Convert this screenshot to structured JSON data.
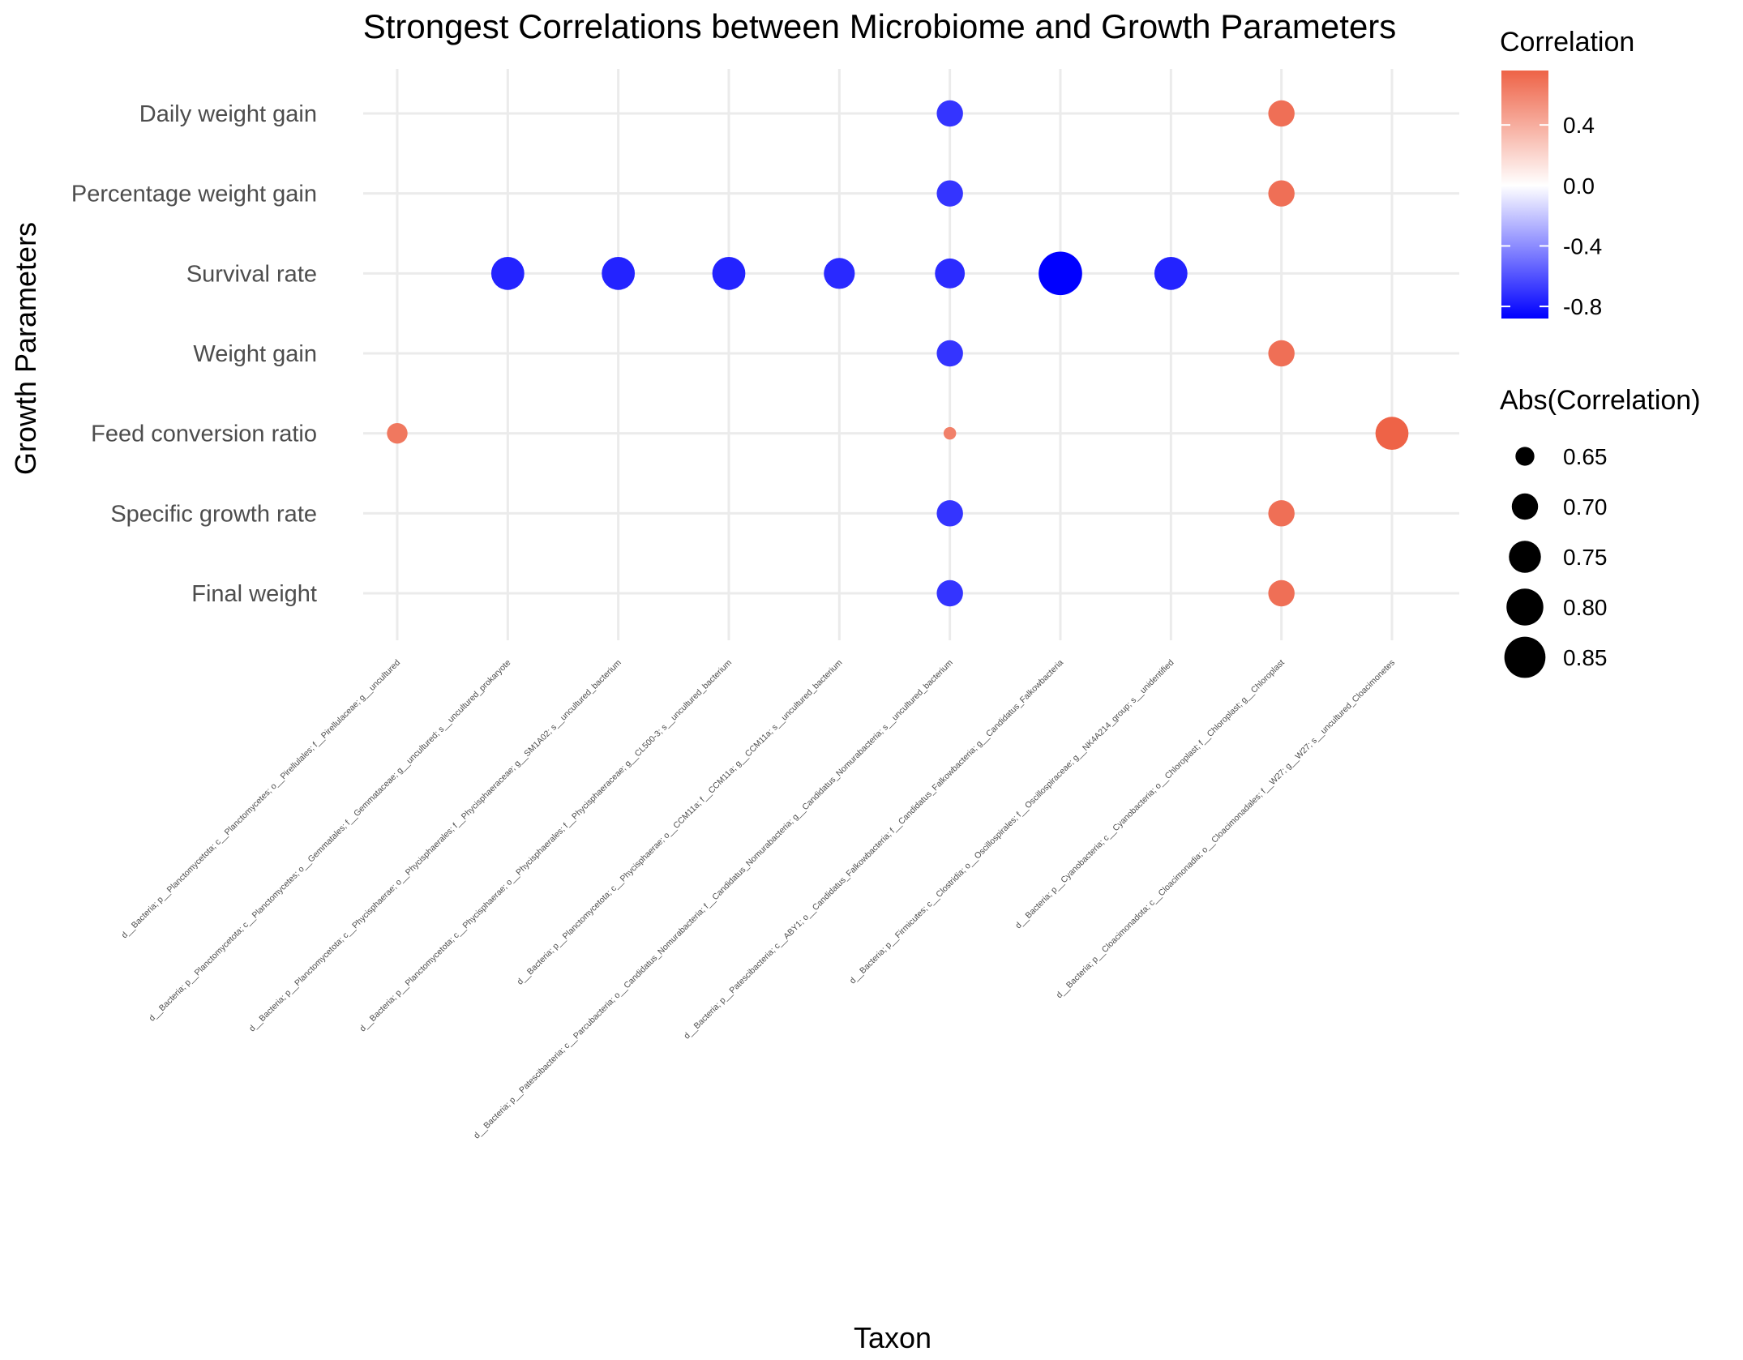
{
  "chart_data": {
    "type": "scatter",
    "title": "Strongest Correlations between Microbiome and Growth Parameters",
    "xlabel": "Taxon",
    "ylabel": "Growth Parameters",
    "grid": true,
    "legend_placement": "right",
    "x_categories": [
      "d__Bacteria; p__Planctomycetota; c__Planctomycetes; o__Pirellulales; f__Pirellulaceae; g__uncultured",
      "d__Bacteria; p__Planctomycetota; c__Planctomycetes; o__Gemmatales; f__Gemmataceae; g__uncultured; s__uncultured_prokaryote",
      "d__Bacteria; p__Planctomycetota; c__Phycisphaerae; o__Phycisphaerales; f__Phycisphaeraceae; g__SM1A02; s__uncultured_bacterium",
      "d__Bacteria; p__Planctomycetota; c__Phycisphaerae; o__Phycisphaerales; f__Phycisphaeraceae; g__CL500-3; s__uncultured_bacterium",
      "d__Bacteria; p__Planctomycetota; c__Phycisphaerae; o__CCM11a; f__CCM11a; g__CCM11a; s__uncultured_bacterium",
      "d__Bacteria; p__Patescibacteria; c__Parcubacteria; o__Candidatus_Nomurabacteria; f__Candidatus_Nomurabacteria; g__Candidatus_Nomurabacteria; s__uncultured_bacterium",
      "d__Bacteria; p__Patescibacteria; c__ABY1; o__Candidatus_Falkowbacteria; f__Candidatus_Falkowbacteria; g__Candidatus_Falkowbacteria",
      "d__Bacteria; p__Firmicutes; c__Clostridia; o__Oscillospirales; f__Oscillospiraceae; g__NK4A214_group; s__unidentified",
      "d__Bacteria; p__Cyanobacteria; c__Cyanobacteria; o__Chloroplast; f__Chloroplast; g__Chloroplast",
      "d__Bacteria; p__Cloacimonadota; c__Cloacimonadia; o__Cloacimonadales; f__W27; g__W27; s__uncultured_Cloacimonetes"
    ],
    "y_categories": [
      "Final weight",
      "Specific growth rate",
      "Feed conversion ratio",
      "Weight gain",
      "Survival rate",
      "Percentage weight gain",
      "Daily weight gain"
    ],
    "points": [
      {
        "x": 0,
        "y": "Feed conversion ratio",
        "correlation": 0.66
      },
      {
        "x": 1,
        "y": "Survival rate",
        "correlation": -0.76
      },
      {
        "x": 2,
        "y": "Survival rate",
        "correlation": -0.76
      },
      {
        "x": 3,
        "y": "Survival rate",
        "correlation": -0.76
      },
      {
        "x": 4,
        "y": "Survival rate",
        "correlation": -0.74
      },
      {
        "x": 5,
        "y": "Daily weight gain",
        "correlation": -0.7
      },
      {
        "x": 5,
        "y": "Percentage weight gain",
        "correlation": -0.7
      },
      {
        "x": 5,
        "y": "Survival rate",
        "correlation": -0.73
      },
      {
        "x": 5,
        "y": "Weight gain",
        "correlation": -0.7
      },
      {
        "x": 5,
        "y": "Feed conversion ratio",
        "correlation": 0.62
      },
      {
        "x": 5,
        "y": "Specific growth rate",
        "correlation": -0.7
      },
      {
        "x": 5,
        "y": "Final weight",
        "correlation": -0.7
      },
      {
        "x": 6,
        "y": "Survival rate",
        "correlation": -0.88
      },
      {
        "x": 7,
        "y": "Survival rate",
        "correlation": -0.76
      },
      {
        "x": 8,
        "y": "Daily weight gain",
        "correlation": 0.7
      },
      {
        "x": 8,
        "y": "Percentage weight gain",
        "correlation": 0.7
      },
      {
        "x": 8,
        "y": "Weight gain",
        "correlation": 0.7
      },
      {
        "x": 8,
        "y": "Specific growth rate",
        "correlation": 0.7
      },
      {
        "x": 8,
        "y": "Final weight",
        "correlation": 0.7
      },
      {
        "x": 9,
        "y": "Feed conversion ratio",
        "correlation": 0.76
      }
    ],
    "color_scale": {
      "title": "Correlation",
      "low_color": "#0000FF",
      "mid_color": "#FFFFFF",
      "high_color": "#EE6347",
      "range": [
        -0.88,
        0.76
      ],
      "ticks": [
        0.4,
        0.0,
        -0.4,
        -0.8
      ],
      "tick_labels": [
        "0.4",
        "0.0",
        "-0.4",
        "-0.8"
      ]
    },
    "size_scale": {
      "title": "Abs(Correlation)",
      "domain": [
        0.62,
        0.88
      ],
      "ticks": [
        0.65,
        0.7,
        0.75,
        0.8,
        0.85
      ],
      "tick_labels": [
        "0.65",
        "0.70",
        "0.75",
        "0.80",
        "0.85"
      ]
    }
  }
}
